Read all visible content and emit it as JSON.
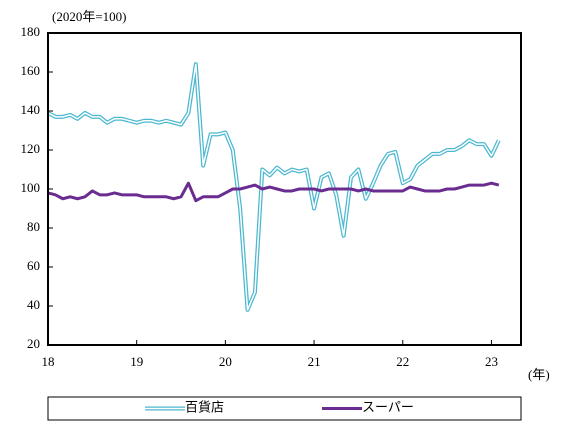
{
  "chart_data": {
    "type": "line",
    "y_label": "(2020年=100)",
    "x_label": "(年)",
    "categories": [
      "18",
      null,
      null,
      null,
      null,
      null,
      null,
      null,
      null,
      null,
      null,
      null,
      "19",
      null,
      null,
      null,
      null,
      null,
      null,
      null,
      null,
      null,
      null,
      null,
      "20",
      null,
      null,
      null,
      null,
      null,
      null,
      null,
      null,
      null,
      null,
      null,
      "21",
      null,
      null,
      null,
      null,
      null,
      null,
      null,
      null,
      null,
      null,
      null,
      "22",
      null,
      null,
      null,
      null,
      null,
      null,
      null,
      null,
      null,
      null,
      null,
      "23",
      null
    ],
    "xlim": [
      0,
      64
    ],
    "ylim": [
      20,
      180
    ],
    "yticks": [
      20,
      40,
      60,
      80,
      100,
      120,
      140,
      160,
      180
    ],
    "series": [
      {
        "name": "百貨店",
        "color": "#4bb8d0",
        "style": "double",
        "values": [
          139,
          137,
          137,
          138,
          136,
          139,
          137,
          137,
          134,
          136,
          136,
          135,
          134,
          135,
          135,
          134,
          135,
          134,
          133,
          139,
          164,
          112,
          128,
          128,
          129,
          120,
          90,
          38,
          47,
          110,
          107,
          111,
          108,
          110,
          109,
          110,
          90,
          106,
          108,
          97,
          76,
          106,
          110,
          95,
          103,
          112,
          118,
          119,
          103,
          105,
          112,
          115,
          118,
          118,
          120,
          120,
          122,
          125,
          123,
          123,
          117,
          125
        ]
      },
      {
        "name": "スーパー",
        "color": "#6a2c91",
        "style": "solid",
        "values": [
          98,
          97,
          95,
          96,
          95,
          96,
          99,
          97,
          97,
          98,
          97,
          97,
          97,
          96,
          96,
          96,
          96,
          95,
          96,
          103,
          94,
          96,
          96,
          96,
          98,
          100,
          100,
          101,
          102,
          100,
          101,
          100,
          99,
          99,
          100,
          100,
          100,
          99,
          100,
          100,
          100,
          100,
          99,
          100,
          99,
          99,
          99,
          99,
          99,
          101,
          100,
          99,
          99,
          99,
          100,
          100,
          101,
          102,
          102,
          102,
          103,
          102
        ]
      }
    ]
  }
}
